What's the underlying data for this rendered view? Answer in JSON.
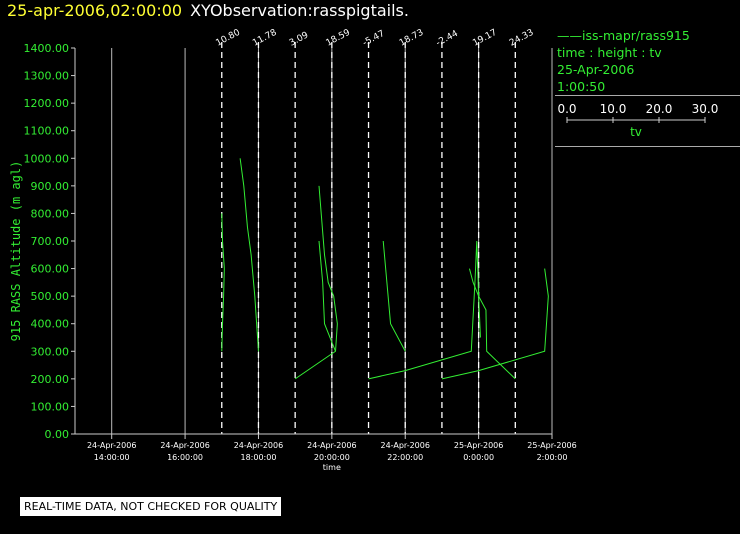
{
  "header": {
    "timestamp": "25-apr-2006,02:00:00",
    "title": "XYObservation:rasspigtails."
  },
  "legend": {
    "series_line": "——iss-mapr/rass915",
    "axes_desc": "time : height : tv",
    "date": "25-Apr-2006",
    "time": "1:00:50",
    "scale_ticks": [
      "0.0",
      "10.0",
      "20.0",
      "30.0"
    ],
    "scale_label": "tv"
  },
  "notice": "REAL-TIME DATA, NOT CHECKED FOR QUALITY",
  "colors": {
    "series": "#33ee33",
    "axis": "#cccccc",
    "background": "#000000",
    "title_time": "#ffff33"
  },
  "chart_data": {
    "type": "line",
    "ylabel": "915 RASS Altitude (m agl)",
    "xlabel": "time",
    "ylim": [
      0,
      1400
    ],
    "yticks": [
      "0.00",
      "100.00",
      "200.00",
      "300.00",
      "400.00",
      "500.00",
      "600.00",
      "700.00",
      "800.00",
      "900.00",
      "1000.00",
      "1100.00",
      "1200.00",
      "1300.00",
      "1400.00"
    ],
    "xlim": [
      13.0,
      2.0
    ],
    "xticks": [
      {
        "hour": 14,
        "date": "24-Apr-2006",
        "time": "14:00:00"
      },
      {
        "hour": 16,
        "date": "24-Apr-2006",
        "time": "16:00:00"
      },
      {
        "hour": 18,
        "date": "24-Apr-2006",
        "time": "18:00:00"
      },
      {
        "hour": 20,
        "date": "24-Apr-2006",
        "time": "20:00:00"
      },
      {
        "hour": 22,
        "date": "24-Apr-2006",
        "time": "22:00:00"
      },
      {
        "hour": 24,
        "date": "25-Apr-2006",
        "time": "0:00:00"
      },
      {
        "hour": 26,
        "date": "25-Apr-2006",
        "time": "2:00:00"
      }
    ],
    "reference_lines": [
      {
        "hour": 17.0,
        "label": "10.80"
      },
      {
        "hour": 18.0,
        "label": "11.78"
      },
      {
        "hour": 19.0,
        "label": "3.09"
      },
      {
        "hour": 20.0,
        "label": "18.59"
      },
      {
        "hour": 21.0,
        "label": "-5.47"
      },
      {
        "hour": 22.0,
        "label": "18.73"
      },
      {
        "hour": 23.0,
        "label": "-2.44"
      },
      {
        "hour": 24.0,
        "label": "19.17"
      },
      {
        "hour": 25.0,
        "label": "24.33"
      }
    ],
    "series": [
      {
        "name": "iss-mapr/rass915",
        "points": [
          [
            17.0,
            300
          ],
          [
            17.02,
            400
          ],
          [
            17.05,
            500
          ],
          [
            17.07,
            600
          ],
          [
            17.02,
            700
          ],
          [
            17.0,
            800
          ]
        ]
      },
      {
        "name": "iss-mapr/rass915",
        "points": [
          [
            17.5,
            1000
          ],
          [
            17.6,
            900
          ],
          [
            17.7,
            750
          ],
          [
            17.8,
            650
          ],
          [
            17.9,
            500
          ],
          [
            18.0,
            300
          ]
        ]
      },
      {
        "name": "iss-mapr/rass915",
        "points": [
          [
            19.0,
            200
          ],
          [
            20.1,
            300
          ],
          [
            20.15,
            400
          ],
          [
            20.05,
            500
          ],
          [
            19.9,
            550
          ],
          [
            19.8,
            650
          ],
          [
            19.65,
            900
          ]
        ]
      },
      {
        "name": "iss-mapr/rass915",
        "points": [
          [
            19.65,
            700
          ],
          [
            19.75,
            550
          ],
          [
            19.8,
            400
          ],
          [
            20.1,
            300
          ]
        ]
      },
      {
        "name": "iss-mapr/rass915",
        "points": [
          [
            21.0,
            200
          ],
          [
            22.0,
            230
          ],
          [
            23.8,
            300
          ],
          [
            23.9,
            550
          ],
          [
            23.95,
            700
          ],
          [
            24.0,
            500
          ],
          [
            24.05,
            350
          ]
        ]
      },
      {
        "name": "iss-mapr/rass915",
        "points": [
          [
            21.4,
            700
          ],
          [
            21.6,
            400
          ],
          [
            22.0,
            300
          ]
        ]
      },
      {
        "name": "iss-mapr/rass915",
        "points": [
          [
            23.0,
            200
          ],
          [
            24.0,
            230
          ],
          [
            25.8,
            300
          ],
          [
            25.85,
            400
          ],
          [
            25.9,
            500
          ],
          [
            25.8,
            600
          ]
        ]
      },
      {
        "name": "iss-mapr/rass915",
        "points": [
          [
            23.75,
            600
          ],
          [
            23.85,
            550
          ],
          [
            24.0,
            500
          ],
          [
            24.2,
            450
          ],
          [
            24.22,
            300
          ],
          [
            25.0,
            200
          ]
        ]
      }
    ]
  }
}
